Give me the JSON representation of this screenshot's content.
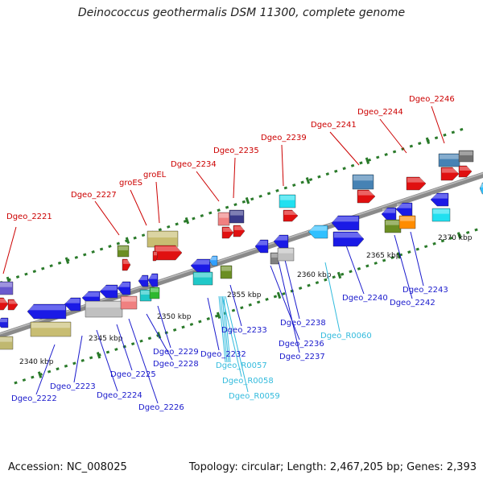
{
  "title": "Deinococcus geothermalis DSM 11300, complete genome",
  "footer": {
    "accession": "Accession: NC_008025",
    "stats": "Topology: circular; Length: 2,467,205 bp; Genes: 2,393"
  },
  "colors": {
    "red_label": "#cc0000",
    "blue_label": "#1a1acc",
    "cyan_label": "#33bbdd",
    "backbone": "#8a8a8a",
    "tick": "#2a7a2a"
  },
  "scale_labels": [
    "2340 kbp",
    "2345 kbp",
    "2350 kbp",
    "2355 kbp",
    "2360 kbp",
    "2365 kbp",
    "2370 kbp"
  ],
  "top_labels": [
    "Dgeo_2221",
    "Dgeo_2227",
    "groES",
    "groEL",
    "Dgeo_2234",
    "Dgeo_2235",
    "Dgeo_2239",
    "Dgeo_2241",
    "Dgeo_2244",
    "Dgeo_2246"
  ],
  "bottom_labels": [
    "Dgeo_2222",
    "Dgeo_2223",
    "Dgeo_2224",
    "Dgeo_2225",
    "Dgeo_2226",
    "Dgeo_2228",
    "Dgeo_2229",
    "Dgeo_2232",
    "Dgeo_2233",
    "Dgeo_2236",
    "Dgeo_2237",
    "Dgeo_2238",
    "Dgeo_2240",
    "Dgeo_2242",
    "Dgeo_2243"
  ],
  "rna_labels": [
    "Dgeo_R0057",
    "Dgeo_R0058",
    "Dgeo_R0059",
    "Dgeo_R0060"
  ]
}
